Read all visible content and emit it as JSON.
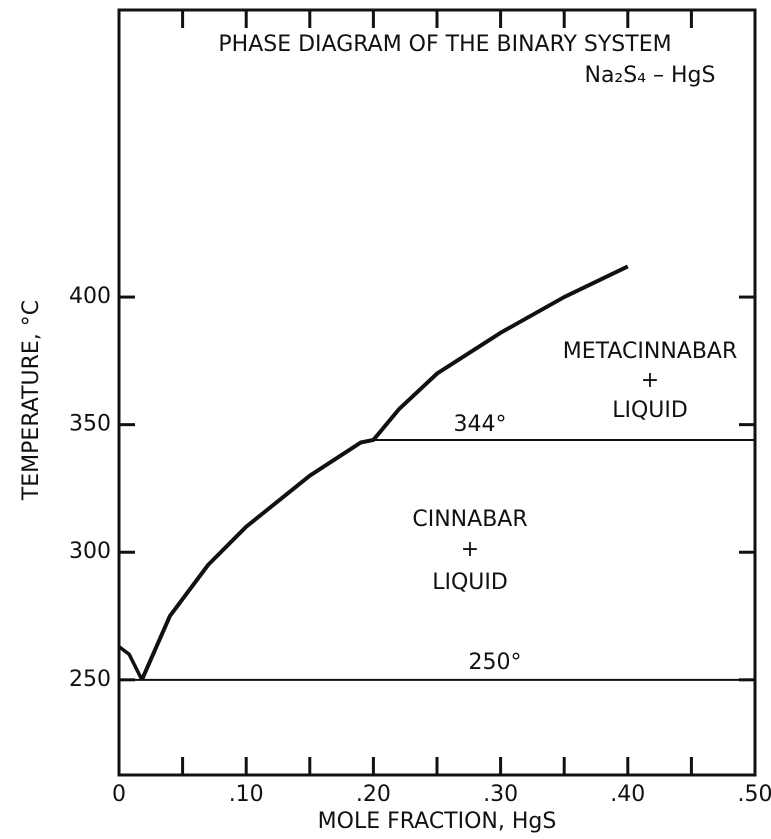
{
  "chart_data": {
    "type": "line",
    "title": "PHASE DIAGRAM OF THE BINARY SYSTEM",
    "subtitle": "Na₂S₄ – HgS",
    "x_label": "MOLE FRACTION, HgS",
    "y_label": "TEMPERATURE, °C",
    "xlim": [
      0,
      0.5
    ],
    "ylim": [
      212.7,
      512.5
    ],
    "xticks": [
      0,
      {
        "value": 0.1,
        "label": ".10"
      },
      {
        "value": 0.2,
        "label": ".20"
      },
      {
        "value": 0.3,
        "label": ".30"
      },
      {
        "value": 0.4,
        "label": ".40"
      },
      {
        "value": 0.5,
        "label": ".50"
      }
    ],
    "xminorticks": [
      0.05,
      0.15,
      0.25,
      0.35,
      0.45
    ],
    "yticks": [
      250,
      300,
      350,
      400
    ],
    "color": "#111111",
    "series": [
      {
        "x": [
          0,
          0.008,
          0.018
        ],
        "values": [
          263,
          260,
          250
        ]
      },
      {
        "x": [
          0.018,
          0.04,
          0.07,
          0.1,
          0.15,
          0.19,
          0.2,
          0.22,
          0.25,
          0.3,
          0.35,
          0.4
        ],
        "values": [
          250,
          275,
          295,
          310,
          330,
          343,
          344,
          356,
          370,
          386,
          400,
          412
        ]
      },
      {
        "x": [
          0,
          0.5
        ],
        "values": [
          250,
          250
        ]
      },
      {
        "x": [
          0.2,
          0.5
        ],
        "values": [
          344,
          344
        ]
      }
    ],
    "annotations": [
      "METACINNABAR",
      "+",
      "LIQUID",
      "344°",
      "CINNABAR",
      "+",
      "LIQUID",
      "250°"
    ]
  }
}
